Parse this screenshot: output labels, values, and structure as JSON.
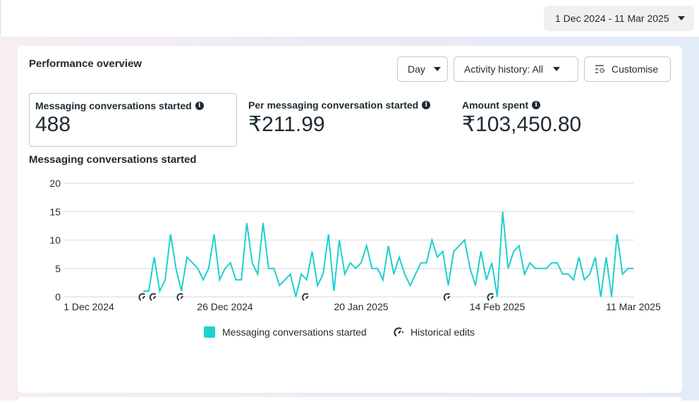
{
  "date_range": {
    "label": "1 Dec 2024 - 11 Mar 2025"
  },
  "card": {
    "title": "Performance overview",
    "buttons": {
      "day": "Day",
      "activity": "Activity history: All",
      "customise": "Customise"
    }
  },
  "metrics": [
    {
      "label": "Messaging conversations started",
      "value": "488"
    },
    {
      "label": "Per messaging conversation started",
      "value": "₹211.99"
    },
    {
      "label": "Amount spent",
      "value": "₹103,450.80"
    }
  ],
  "colors": {
    "line": "#1fcfcf"
  },
  "chart_data": {
    "type": "line",
    "title": "Messaging conversations started",
    "xlabel": "",
    "ylabel": "",
    "ylim": [
      0,
      20
    ],
    "yticks": [
      0,
      5,
      10,
      15,
      20
    ],
    "xtick_labels": [
      "1 Dec 2024",
      "26 Dec 2024",
      "20 Jan 2025",
      "14 Feb 2025",
      "11 Mar 2025"
    ],
    "xtick_days": [
      0,
      25,
      50,
      75,
      100
    ],
    "x_start_day": 10,
    "series": [
      {
        "name": "Messaging conversations started",
        "values": [
          1,
          1,
          7,
          1,
          3,
          11,
          5,
          1,
          7,
          6,
          5,
          3,
          5,
          11,
          3,
          5,
          6,
          3,
          3,
          13,
          6,
          4,
          13,
          5,
          5,
          2,
          3,
          4,
          0,
          4,
          3,
          8,
          2,
          4,
          11,
          1,
          10,
          4,
          6,
          5,
          6,
          9,
          5,
          5,
          3,
          9,
          4,
          7,
          4,
          2,
          4,
          6,
          6,
          10,
          7,
          8,
          2,
          8,
          9,
          10,
          5,
          2,
          8,
          3,
          6,
          0,
          15,
          5,
          8,
          9,
          4,
          6,
          5,
          5,
          5,
          6,
          6,
          4,
          4,
          3,
          7,
          3,
          4,
          7,
          0,
          7,
          0,
          11,
          4,
          5,
          5
        ]
      }
    ],
    "historical_edit_days": [
      10,
      12,
      17,
      40,
      66,
      74
    ],
    "legend": [
      "Messaging conversations started",
      "Historical edits"
    ],
    "legend_position": "bottom",
    "grid": true
  }
}
